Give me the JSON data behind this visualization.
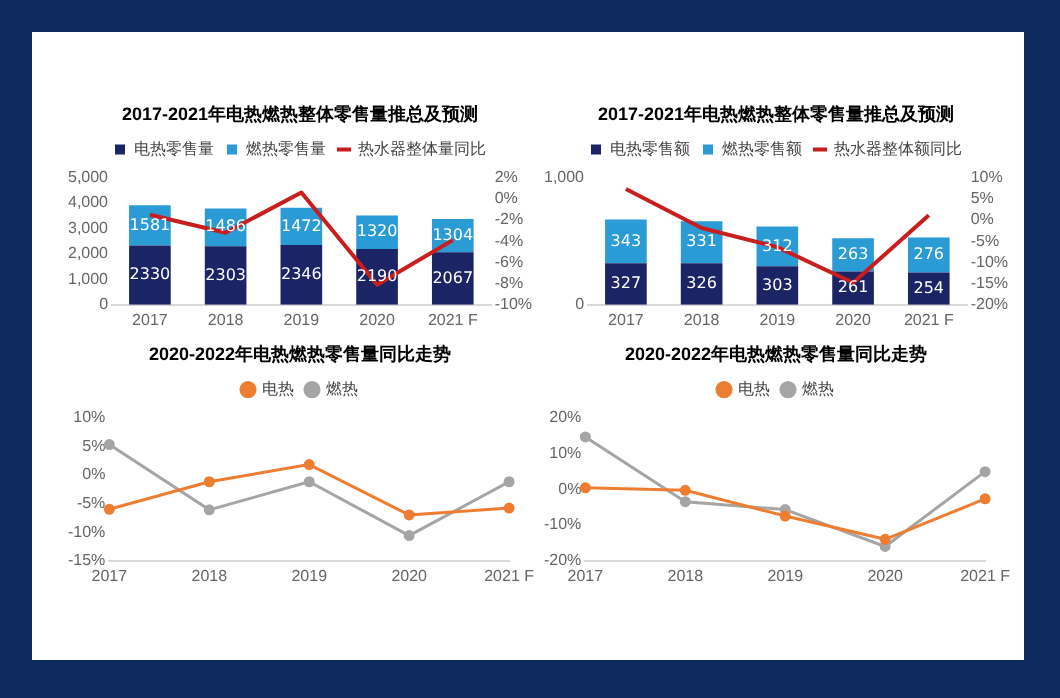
{
  "chart_data": [
    {
      "type": "bar",
      "title": "2017-2021年电热燃热整体零售量推总及预测",
      "categories": [
        "2017",
        "2018",
        "2019",
        "2020",
        "2021 F"
      ],
      "stacked": true,
      "legend": "top",
      "grid": false,
      "series": [
        {
          "name": "电热零售量",
          "color": "#1b2566",
          "values": [
            2330,
            2303,
            2346,
            2190,
            2067
          ],
          "value_labels": [
            "2330",
            "2303",
            "2346",
            "2190",
            "2067"
          ]
        },
        {
          "name": "燃热零售量",
          "color": "#2b9bd6",
          "values": [
            1581,
            1486,
            1472,
            1320,
            1304
          ],
          "value_labels": [
            "1581",
            "1486",
            "1472",
            "1320",
            "1304"
          ]
        },
        {
          "name": "热水器整体量同比",
          "type": "line",
          "axis": "y2",
          "color": "#c81e1e",
          "values": [
            -1.5,
            -3.2,
            0.6,
            -8.1,
            -3.9
          ]
        }
      ],
      "ylim": [
        0,
        5000
      ],
      "yticks": [
        0,
        {
          "value": 1000,
          "label": "1,000"
        },
        {
          "value": 2000,
          "label": "2,000"
        },
        {
          "value": 3000,
          "label": "3,000"
        },
        {
          "value": 4000,
          "label": "4,000"
        },
        {
          "value": 5000,
          "label": "5,000"
        }
      ],
      "y2lim": [
        -10,
        2
      ],
      "y2ticks": [
        {
          "value": -10,
          "label": "-10%"
        },
        {
          "value": -8,
          "label": "-8%"
        },
        {
          "value": -6,
          "label": "-6%"
        },
        {
          "value": -4,
          "label": "-4%"
        },
        {
          "value": -2,
          "label": "-2%"
        },
        {
          "value": 0,
          "label": "0%"
        },
        {
          "value": 2,
          "label": "2%"
        }
      ]
    },
    {
      "type": "bar",
      "title": "2017-2021年电热燃热整体零售量推总及预测",
      "categories": [
        "2017",
        "2018",
        "2019",
        "2020",
        "2021 F"
      ],
      "stacked": true,
      "legend": "top",
      "grid": false,
      "series": [
        {
          "name": "电热零售额",
          "color": "#1b2566",
          "values": [
            327,
            326,
            303,
            261,
            254
          ],
          "value_labels": [
            "327",
            "326",
            "303",
            "261",
            "254"
          ]
        },
        {
          "name": "燃热零售额",
          "color": "#2b9bd6",
          "values": [
            343,
            331,
            312,
            263,
            276
          ],
          "value_labels": [
            "343",
            "331",
            "312",
            "263",
            "276"
          ]
        },
        {
          "name": "热水器整体额同比",
          "type": "line",
          "axis": "y2",
          "color": "#c81e1e",
          "values": [
            7.3,
            -1.9,
            -6.4,
            -14.8,
            1.1
          ]
        }
      ],
      "ylim": [
        0,
        1000
      ],
      "yticks": [
        0,
        {
          "value": 1000,
          "label": "1,000"
        }
      ],
      "y2lim": [
        -20,
        10
      ],
      "y2ticks": [
        {
          "value": -20,
          "label": "-20%"
        },
        {
          "value": -15,
          "label": "-15%"
        },
        {
          "value": -10,
          "label": "-10%"
        },
        {
          "value": -5,
          "label": "-5%"
        },
        {
          "value": 0,
          "label": "0%"
        },
        {
          "value": 5,
          "label": "5%"
        },
        {
          "value": 10,
          "label": "10%"
        }
      ]
    },
    {
      "type": "line",
      "title": "2020-2022年电热燃热零售量同比走势",
      "categories": [
        "2017",
        "2018",
        "2019",
        "2020",
        "2021 F"
      ],
      "legend": "top",
      "grid": false,
      "marker": "circle",
      "series": [
        {
          "name": "电热",
          "color": "#ed7d31",
          "values": [
            -6.0,
            -1.2,
            1.8,
            -7.0,
            -5.8
          ]
        },
        {
          "name": "燃热",
          "color": "#a5a5a5",
          "values": [
            5.3,
            -6.1,
            -1.2,
            -10.6,
            -1.2
          ]
        }
      ],
      "ylim": [
        -15,
        10
      ],
      "yticks": [
        {
          "value": -15,
          "label": "-15%"
        },
        {
          "value": -10,
          "label": "-10%"
        },
        {
          "value": -5,
          "label": "-5%"
        },
        {
          "value": 0,
          "label": "0%"
        },
        {
          "value": 5,
          "label": "5%"
        },
        {
          "value": 10,
          "label": "10%"
        }
      ]
    },
    {
      "type": "line",
      "title": "2020-2022年电热燃热零售量同比走势",
      "categories": [
        "2017",
        "2018",
        "2019",
        "2020",
        "2021 F"
      ],
      "legend": "top",
      "grid": false,
      "marker": "circle",
      "series": [
        {
          "name": "电热",
          "color": "#ed7d31",
          "values": [
            0.4,
            -0.3,
            -7.5,
            -14.0,
            -2.7
          ]
        },
        {
          "name": "燃热",
          "color": "#a5a5a5",
          "values": [
            14.6,
            -3.5,
            -5.7,
            -16.0,
            4.9
          ]
        }
      ],
      "ylim": [
        -20,
        20
      ],
      "yticks": [
        {
          "value": -20,
          "label": "-20%"
        },
        {
          "value": -10,
          "label": "-10%"
        },
        {
          "value": 0,
          "label": "0%"
        },
        {
          "value": 10,
          "label": "10%"
        },
        {
          "value": 20,
          "label": "20%"
        }
      ]
    }
  ]
}
